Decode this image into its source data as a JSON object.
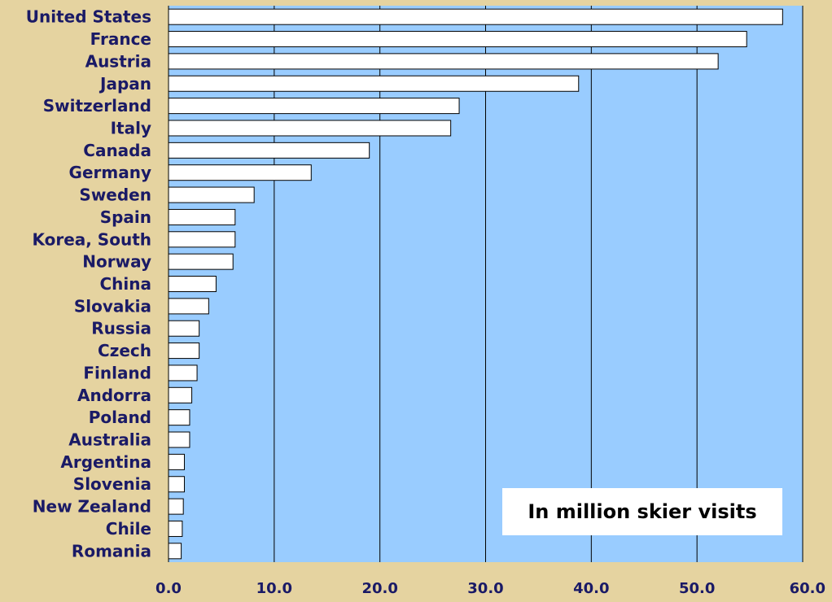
{
  "chart_data": {
    "type": "bar",
    "orientation": "horizontal",
    "categories": [
      "United States",
      "France",
      "Austria",
      "Japan",
      "Switzerland",
      "Italy",
      "Canada",
      "Germany",
      "Sweden",
      "Spain",
      "Korea, South",
      "Norway",
      "China",
      "Slovakia",
      "Russia",
      "Czech",
      "Finland",
      "Andorra",
      "Poland",
      "Australia",
      "Argentina",
      "Slovenia",
      "New Zealand",
      "Chile",
      "Romania"
    ],
    "values": [
      58.1,
      54.7,
      52.0,
      38.8,
      27.5,
      26.7,
      19.0,
      13.5,
      8.1,
      6.3,
      6.3,
      6.1,
      4.5,
      3.8,
      2.9,
      2.9,
      2.7,
      2.2,
      2.0,
      2.0,
      1.5,
      1.5,
      1.4,
      1.3,
      1.2
    ],
    "title": "",
    "xlabel": "",
    "ylabel": "",
    "xlim": [
      0,
      60
    ],
    "xticks": [
      "0.0",
      "10.0",
      "20.0",
      "30.0",
      "40.0",
      "50.0",
      "60.0"
    ],
    "grid": true,
    "annotation": "In million skier visits"
  },
  "colors": {
    "page_background": "#e5d3a0",
    "plot_background": "#99ccff",
    "bar_fill": "#ffffff",
    "label_color": "#1a1a66"
  }
}
